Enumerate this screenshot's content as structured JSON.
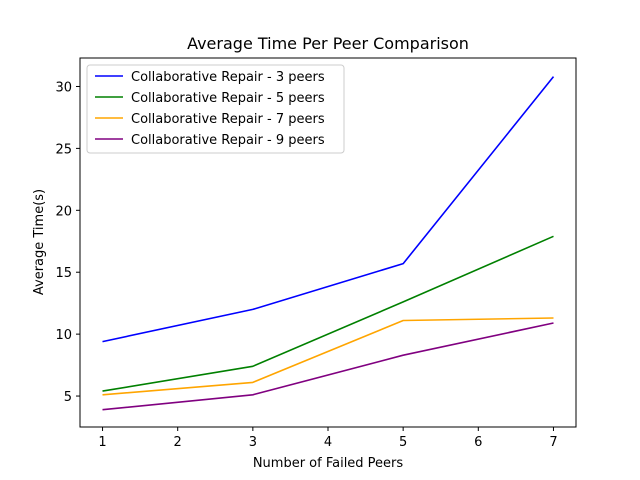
{
  "chart_data": {
    "type": "line",
    "title": "Average Time Per Peer Comparison",
    "xlabel": "Number of Failed Peers",
    "ylabel": "Average Time(s)",
    "x": [
      1,
      3,
      5,
      7
    ],
    "xticks": [
      1,
      2,
      3,
      4,
      5,
      6,
      7
    ],
    "yticks": [
      5,
      10,
      15,
      20,
      25,
      30
    ],
    "xlim": [
      0.7,
      7.3
    ],
    "ylim": [
      2.5,
      32.3
    ],
    "grid": false,
    "legend_position": "upper-left",
    "series": [
      {
        "name": "Collaborative Repair - 3 peers",
        "color": "#0000ff",
        "values": [
          9.4,
          12.0,
          15.7,
          30.8
        ]
      },
      {
        "name": "Collaborative Repair - 5 peers",
        "color": "#008000",
        "values": [
          5.4,
          7.4,
          12.6,
          17.9
        ]
      },
      {
        "name": "Collaborative Repair - 7 peers",
        "color": "#ffa500",
        "values": [
          5.1,
          6.1,
          11.1,
          11.3
        ]
      },
      {
        "name": "Collaborative Repair - 9 peers",
        "color": "#800080",
        "values": [
          3.9,
          5.1,
          8.3,
          10.9
        ]
      }
    ]
  }
}
